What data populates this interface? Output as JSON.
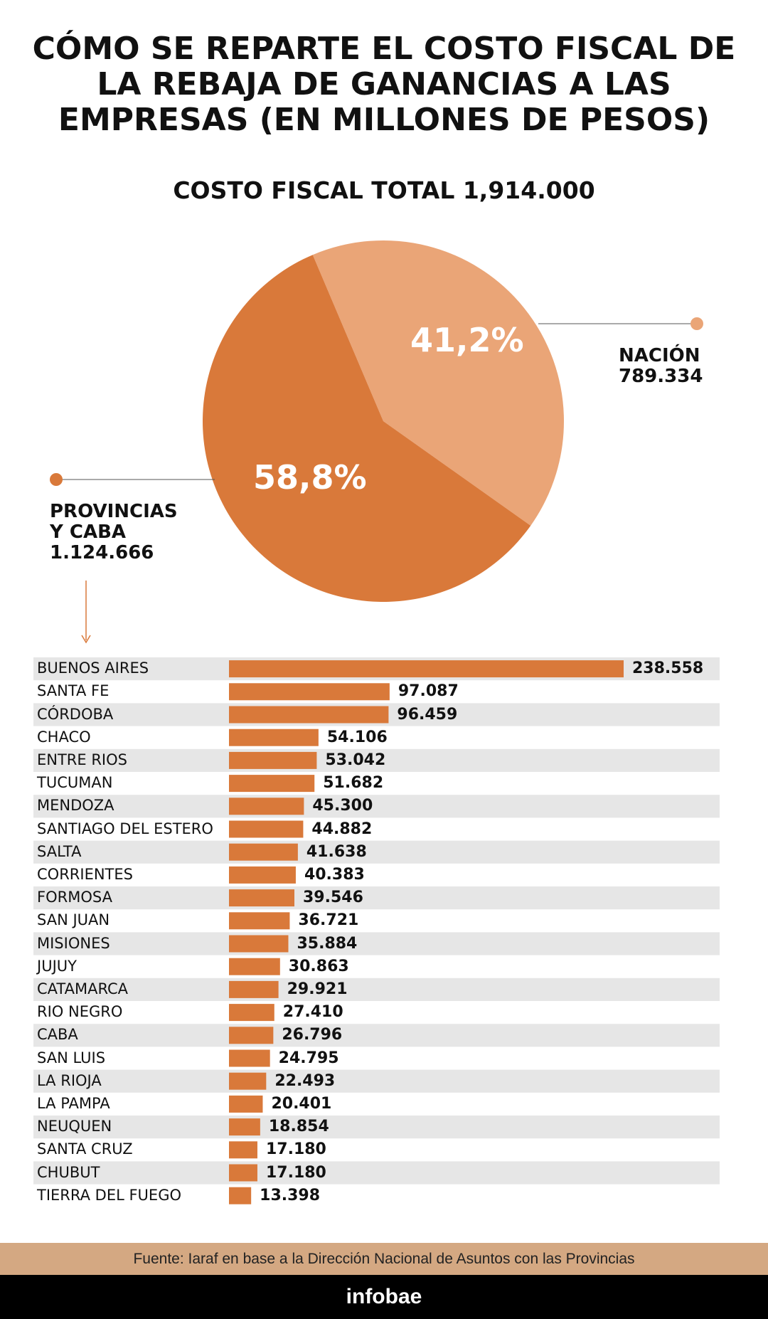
{
  "chart_data": [
    {
      "type": "pie",
      "title": "CÓMO SE REPARTE EL COSTO FISCAL DE LA REBAJA DE GANANCIAS A LAS EMPRESAS (EN MILLONES DE PESOS)",
      "subtitle": "COSTO FISCAL TOTAL 1,914.000",
      "categories": [
        "NACIÓN",
        "PROVINCIAS Y CABA"
      ],
      "values": [
        41.2,
        58.8
      ],
      "value_labels": [
        "41,2%",
        "58,8%"
      ],
      "amounts": [
        789334,
        1124666
      ],
      "amount_labels": [
        "789.334",
        "1.124.666"
      ],
      "colors": [
        "#eaa577",
        "#d9793a"
      ]
    },
    {
      "type": "bar",
      "orientation": "horizontal",
      "color": "#d9793a",
      "categories": [
        "BUENOS AIRES",
        "SANTA FE",
        "CÓRDOBA",
        "CHACO",
        "ENTRE RIOS",
        "TUCUMAN",
        "MENDOZA",
        "SANTIAGO DEL ESTERO",
        "SALTA",
        "CORRIENTES",
        "FORMOSA",
        "SAN JUAN",
        "MISIONES",
        "JUJUY",
        "CATAMARCA",
        "RIO NEGRO",
        "CABA",
        "SAN LUIS",
        "LA RIOJA",
        "LA PAMPA",
        "NEUQUEN",
        "SANTA CRUZ",
        "CHUBUT",
        "TIERRA DEL FUEGO"
      ],
      "values": [
        238558,
        97087,
        96459,
        54106,
        53042,
        51682,
        45300,
        44882,
        41638,
        40383,
        39546,
        36721,
        35884,
        30863,
        29921,
        27410,
        26796,
        24795,
        22493,
        20401,
        18854,
        17180,
        17180,
        13398
      ],
      "value_labels": [
        "238.558",
        "97.087",
        "96.459",
        "54.106",
        "53.042",
        "51.682",
        "45.300",
        "44.882",
        "41.638",
        "40.383",
        "39.546",
        "36.721",
        "35.884",
        "30.863",
        "29.921",
        "27.410",
        "26.796",
        "24.795",
        "22.493",
        "20.401",
        "18.854",
        "17.180",
        "17.180",
        "13.398"
      ]
    }
  ],
  "footer": {
    "source": "Fuente: Iaraf en base a la Dirección Nacional de Asuntos con las Provincias",
    "logo": "infobae"
  }
}
